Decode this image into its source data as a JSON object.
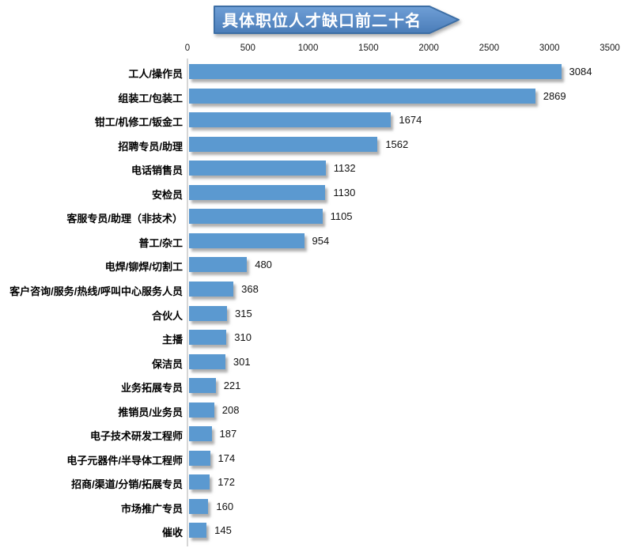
{
  "page": {
    "background": "#ffffff"
  },
  "chart_data": {
    "type": "bar",
    "orientation": "horizontal",
    "title": "具体职位人才缺口前二十名",
    "categories": [
      "工人/操作员",
      "组装工/包装工",
      "钳工/机修工/钣金工",
      "招聘专员/助理",
      "电话销售员",
      "安检员",
      "客服专员/助理（非技术）",
      "普工/杂工",
      "电焊/铆焊/切割工",
      "客户咨询/服务/热线/呼叫中心服务人员",
      "合伙人",
      "主播",
      "保洁员",
      "业务拓展专员",
      "推销员/业务员",
      "电子技术研发工程师",
      "电子元器件/半导体工程师",
      "招商/渠道/分销/拓展专员",
      "市场推广专员",
      "催收"
    ],
    "values": [
      3084,
      2869,
      1674,
      1562,
      1132,
      1130,
      1105,
      954,
      480,
      368,
      315,
      310,
      301,
      221,
      208,
      187,
      174,
      172,
      160,
      145
    ],
    "value_labels_shown": true,
    "xlabel": "",
    "ylabel": "",
    "xlim": [
      0,
      3500
    ],
    "x_ticks": [
      0,
      500,
      1000,
      1500,
      2000,
      2500,
      3000,
      3500
    ],
    "x_axis_position": "top",
    "grid": false,
    "legend": "none",
    "colors": {
      "bar": "#5b99d0",
      "baseline": "#d6d6d6",
      "banner_fill_top": "#6f9fd6",
      "banner_fill_bottom": "#4a7cb8",
      "banner_border": "#3c6ea5",
      "title_text": "#ffffff",
      "tick_text": "#1a1a1a",
      "value_text": "#111111"
    }
  }
}
